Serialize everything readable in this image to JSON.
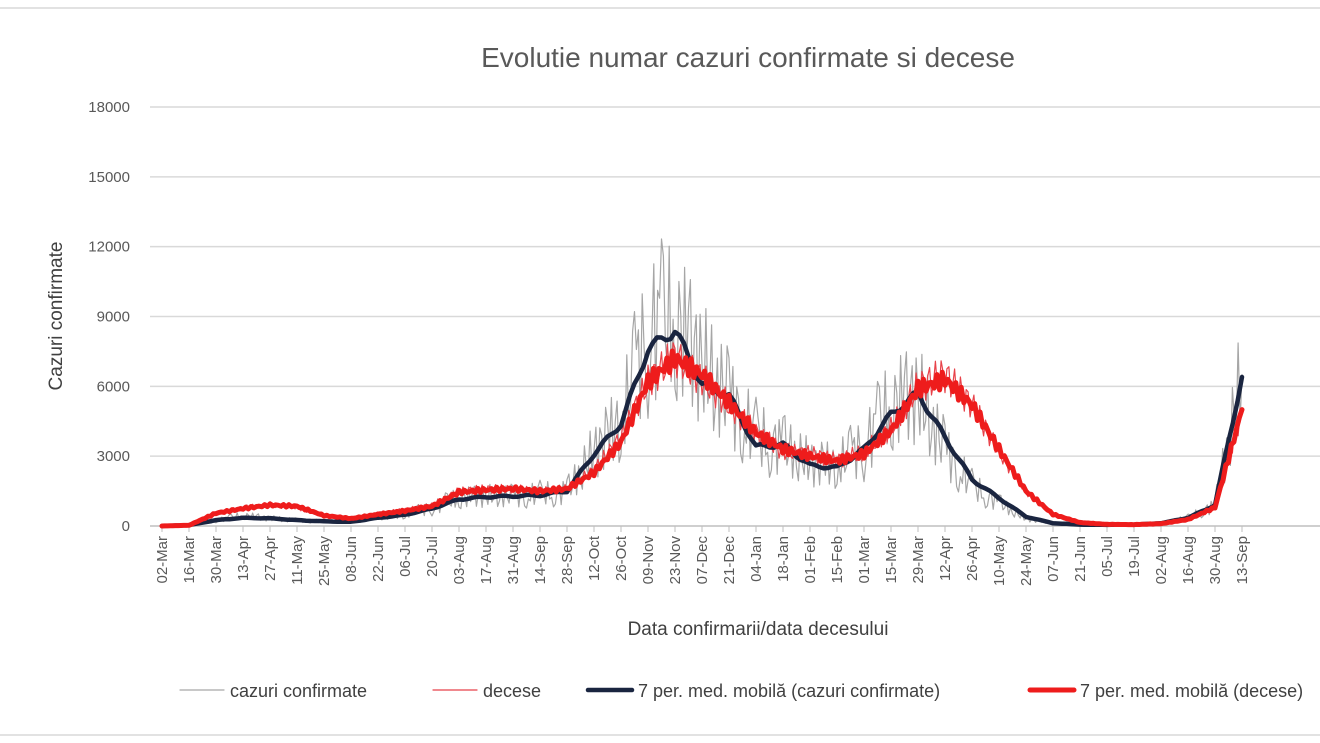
{
  "chart_data": {
    "type": "line",
    "title": "Evolutie numar cazuri confirmate si decese",
    "xlabel": "Data confirmarii/data decesului",
    "ylabel": "Cazuri confirmate",
    "ylim": [
      0,
      18000
    ],
    "y_ticks": [
      0,
      3000,
      6000,
      9000,
      12000,
      15000,
      18000
    ],
    "categories": [
      "02-Mar",
      "16-Mar",
      "30-Mar",
      "13-Apr",
      "27-Apr",
      "11-May",
      "25-May",
      "08-Jun",
      "22-Jun",
      "06-Jul",
      "20-Jul",
      "03-Aug",
      "17-Aug",
      "31-Aug",
      "14-Sep",
      "28-Sep",
      "12-Oct",
      "26-Oct",
      "09-Nov",
      "23-Nov",
      "07-Dec",
      "21-Dec",
      "04-Jan",
      "18-Jan",
      "01-Feb",
      "15-Feb",
      "01-Mar",
      "15-Mar",
      "29-Mar",
      "12-Apr",
      "26-Apr",
      "10-May",
      "24-May",
      "07-Jun",
      "21-Jun",
      "05-Jul",
      "19-Jul",
      "02-Aug",
      "16-Aug",
      "30-Aug",
      "13-Sep"
    ],
    "grid": true,
    "legend_position": "bottom",
    "colors": {
      "raw_cases": "#a6a6a6",
      "raw_deaths": "#e8424a",
      "ma_cases": "#1a2540",
      "ma_deaths": "#ee1c1c",
      "grid": "#d9d9d9",
      "axis": "#bfbfbf"
    },
    "series": [
      {
        "name": "cazuri confirmate",
        "style": "thin-grey",
        "values": [
          0,
          50,
          250,
          450,
          330,
          250,
          200,
          180,
          400,
          500,
          800,
          1200,
          1300,
          1300,
          1350,
          1500,
          3200,
          4500,
          8500,
          8800,
          7000,
          5500,
          3800,
          3500,
          2700,
          2600,
          3500,
          5200,
          5700,
          3300,
          1700,
          1000,
          300,
          120,
          60,
          50,
          60,
          120,
          350,
          900,
          6500
        ]
      },
      {
        "name": "decese",
        "style": "thin-red",
        "values": [
          0,
          40,
          550,
          800,
          900,
          800,
          400,
          300,
          550,
          700,
          900,
          1500,
          1600,
          1600,
          1500,
          1600,
          2400,
          3800,
          6200,
          7300,
          6300,
          5200,
          4000,
          3200,
          3100,
          2800,
          3200,
          4200,
          6000,
          6500,
          5200,
          3200,
          1500,
          500,
          150,
          70,
          60,
          100,
          280,
          800,
          5000
        ]
      },
      {
        "name": "7 per. med. mobilă (cazuri confirmate)",
        "style": "thick-navy",
        "values": [
          0,
          40,
          250,
          350,
          330,
          250,
          200,
          180,
          350,
          480,
          750,
          1150,
          1250,
          1280,
          1320,
          1500,
          3100,
          4400,
          7600,
          8400,
          6100,
          5600,
          3400,
          3500,
          2600,
          2500,
          3300,
          4800,
          5700,
          3800,
          2000,
          1200,
          400,
          120,
          60,
          50,
          60,
          120,
          350,
          900,
          6400
        ]
      },
      {
        "name": "7 per. med. mobilă (decese)",
        "style": "thick-red",
        "values": [
          0,
          30,
          550,
          750,
          900,
          850,
          450,
          320,
          500,
          650,
          850,
          1450,
          1550,
          1600,
          1500,
          1600,
          2300,
          3600,
          6200,
          7200,
          6500,
          5300,
          4000,
          3300,
          3000,
          2800,
          3100,
          4100,
          5900,
          6300,
          5200,
          3300,
          1500,
          500,
          150,
          70,
          60,
          100,
          280,
          800,
          5000
        ]
      }
    ],
    "legend": [
      "cazuri confirmate",
      "decese",
      "7 per. med. mobilă (cazuri confirmate)",
      "7 per. med. mobilă (decese)"
    ]
  }
}
